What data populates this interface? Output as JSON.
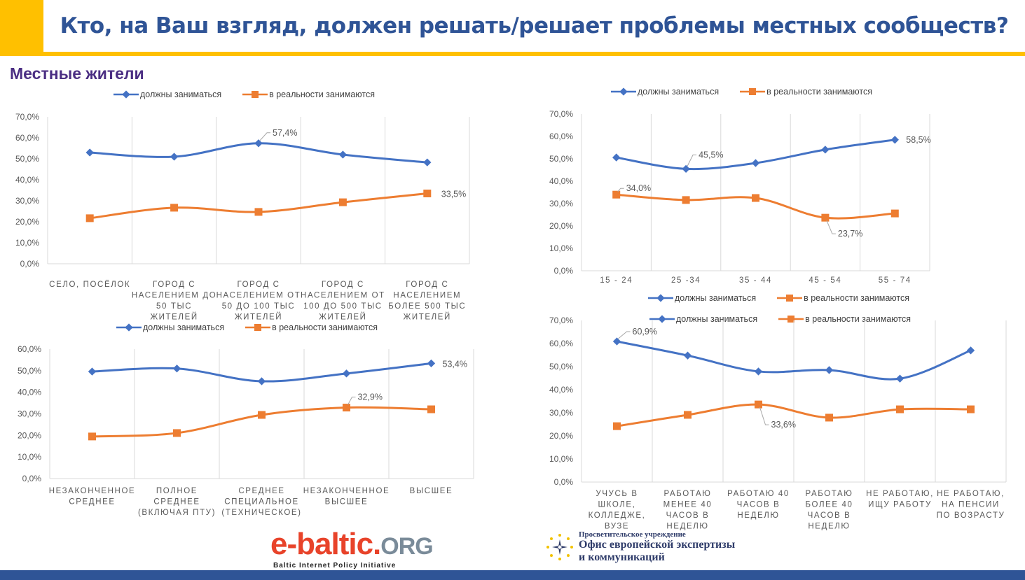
{
  "header": {
    "title": "Кто, на Ваш взгляд, должен решать/решает проблемы местных сообществ?",
    "subtitle": "Местные жители"
  },
  "colors": {
    "accent_yellow": "#FFC000",
    "title_blue": "#2F5496",
    "subtitle_purple": "#4B2E83",
    "series_blue": "#4472C4",
    "series_orange": "#ED7D31",
    "footer_blue": "#2F5496"
  },
  "legend": {
    "series1": "должны заниматься",
    "series2": "в реальности занимаются"
  },
  "chart_data": [
    {
      "id": "settlement",
      "type": "line",
      "title": "",
      "ylim": [
        0,
        70
      ],
      "yticks": [
        "0,0%",
        "10,0%",
        "20,0%",
        "30,0%",
        "40,0%",
        "50,0%",
        "60,0%",
        "70,0%"
      ],
      "categories": [
        [
          "СЕЛО, ПОСЁЛОК"
        ],
        [
          "ГОРОД С",
          "НАСЕЛЕНИЕМ ДО",
          "50 ТЫС",
          "ЖИТЕЛЕЙ"
        ],
        [
          "ГОРОД С",
          "НАСЕЛЕНИЕМ ОТ",
          "50 ДО 100 ТЫС",
          "ЖИТЕЛЕЙ"
        ],
        [
          "ГОРОД С",
          "НАСЕЛЕНИЕМ ОТ",
          "100 ДО 500 ТЫС",
          "ЖИТЕЛЕЙ"
        ],
        [
          "ГОРОД С",
          "НАСЕЛЕНИЕМ",
          "БОЛЕЕ 500 ТЫС",
          "ЖИТЕЛЕЙ"
        ]
      ],
      "legend_position": "top",
      "grid": "vertical",
      "series": [
        {
          "name": "должны заниматься",
          "values": [
            53.0,
            51.0,
            57.4,
            52.0,
            48.3
          ],
          "labels": [
            null,
            null,
            "57,4%",
            null,
            null
          ]
        },
        {
          "name": "в реальности занимаются",
          "values": [
            21.7,
            26.7,
            24.7,
            29.3,
            33.5
          ],
          "labels": [
            null,
            null,
            null,
            null,
            "33,5%"
          ]
        }
      ]
    },
    {
      "id": "age",
      "type": "line",
      "title": "",
      "ylim": [
        0,
        70
      ],
      "yticks": [
        "0,0%",
        "10,0%",
        "20,0%",
        "30,0%",
        "40,0%",
        "50,0%",
        "60,0%",
        "70,0%"
      ],
      "categories": [
        [
          "15 - 24"
        ],
        [
          "25 -34"
        ],
        [
          "35 - 44"
        ],
        [
          "45 - 54"
        ],
        [
          "55 - 74"
        ]
      ],
      "legend_position": "top and bottom",
      "grid": "vertical",
      "series": [
        {
          "name": "должны заниматься",
          "values": [
            50.6,
            45.5,
            48.1,
            54.1,
            58.5
          ],
          "labels": [
            null,
            "45,5%",
            null,
            null,
            "58,5%"
          ]
        },
        {
          "name": "в реальности занимаются",
          "values": [
            34.0,
            31.6,
            32.5,
            23.7,
            25.6
          ],
          "labels": [
            "34,0%",
            null,
            null,
            "23,7%",
            null
          ]
        }
      ]
    },
    {
      "id": "education",
      "type": "line",
      "title": "",
      "ylim": [
        0,
        60
      ],
      "yticks": [
        "0,0%",
        "10,0%",
        "20,0%",
        "30,0%",
        "40,0%",
        "50,0%",
        "60,0%"
      ],
      "categories": [
        [
          "НЕЗАКОНЧЕННОЕ",
          "СРЕДНЕЕ"
        ],
        [
          "ПОЛНОЕ",
          "СРЕДНЕЕ",
          "(ВКЛЮЧАЯ ПТУ)"
        ],
        [
          "СРЕДНЕЕ",
          "СПЕЦИАЛЬНОЕ",
          "(ТЕХНИЧЕСКОЕ)"
        ],
        [
          "НЕЗАКОНЧЕННОЕ",
          "ВЫСШЕЕ"
        ],
        [
          "ВЫСШЕЕ"
        ]
      ],
      "legend_position": "top",
      "grid": "vertical",
      "series": [
        {
          "name": "должны заниматься",
          "values": [
            49.6,
            51.0,
            45.1,
            48.7,
            53.4
          ],
          "labels": [
            null,
            null,
            null,
            null,
            "53,4%"
          ]
        },
        {
          "name": "в реальности занимаются",
          "values": [
            19.5,
            21.1,
            29.5,
            32.9,
            32.1
          ],
          "labels": [
            null,
            null,
            null,
            "32,9%",
            null
          ]
        }
      ]
    },
    {
      "id": "employment",
      "type": "line",
      "title": "",
      "ylim": [
        0,
        70
      ],
      "yticks": [
        "0,0%",
        "10,0%",
        "20,0%",
        "30,0%",
        "40,0%",
        "50,0%",
        "60,0%",
        "70,0%"
      ],
      "categories": [
        [
          "УЧУСЬ В",
          "ШКОЛЕ,",
          "КОЛЛЕДЖЕ,",
          "ВУЗЕ"
        ],
        [
          "РАБОТАЮ",
          "МЕНЕЕ 40",
          "ЧАСОВ В",
          "НЕДЕЛЮ"
        ],
        [
          "РАБОТАЮ 40",
          "ЧАСОВ В",
          "НЕДЕЛЮ"
        ],
        [
          "РАБОТАЮ",
          "БОЛЕЕ 40",
          "ЧАСОВ В",
          "НЕДЕЛЮ"
        ],
        [
          "НЕ РАБОТАЮ,",
          "ИЩУ РАБОТУ"
        ],
        [
          "НЕ РАБОТАЮ,",
          "НА ПЕНСИИ",
          "ПО ВОЗРАСТУ"
        ]
      ],
      "legend_position": "top",
      "grid": "vertical",
      "series": [
        {
          "name": "должны заниматься",
          "values": [
            60.9,
            54.8,
            47.9,
            48.5,
            44.8,
            57.0
          ],
          "labels": [
            "60,9%",
            null,
            null,
            null,
            null,
            null
          ]
        },
        {
          "name": "в реальности занимаются",
          "values": [
            24.2,
            29.1,
            33.6,
            27.9,
            31.5,
            31.5
          ],
          "labels": [
            null,
            null,
            "33,6%",
            null,
            null,
            null
          ]
        }
      ]
    }
  ],
  "logos": {
    "ebaltic_main": "e-baltic.",
    "ebaltic_org": "ORG",
    "ebaltic_tagline": "Baltic Internet Policy Initiative",
    "office_small": "Просветительское учреждение",
    "office_line1": "Офис европейской экспертизы",
    "office_line2": "и коммуникаций"
  }
}
